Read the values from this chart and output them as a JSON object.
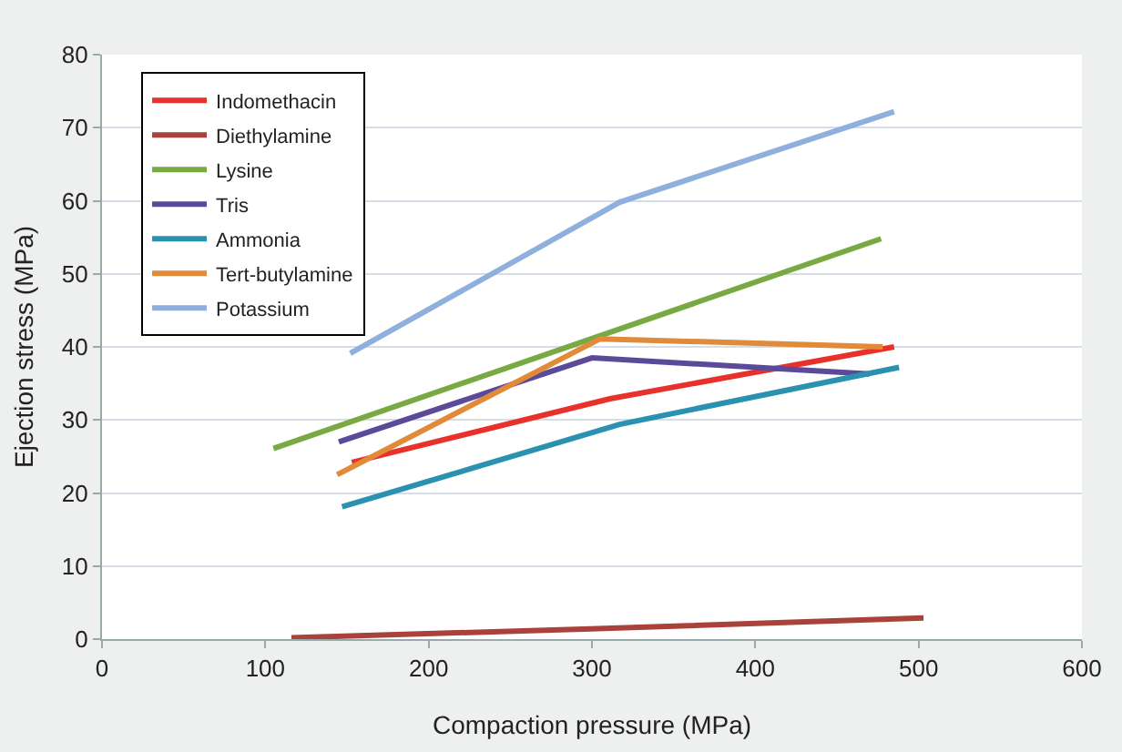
{
  "chart_data": {
    "type": "line",
    "xlabel": "Compaction pressure (MPa)",
    "ylabel": "Ejection stress (MPa)",
    "xlim": [
      0,
      600
    ],
    "xticks": [
      0,
      100,
      200,
      300,
      400,
      500,
      600
    ],
    "ylim": [
      0,
      80
    ],
    "yticks": [
      0,
      10,
      20,
      30,
      40,
      50,
      60,
      70,
      80
    ],
    "grid": "y",
    "legend": "top left",
    "marker": "none",
    "line_style": "solid",
    "series": [
      {
        "name": "Indomethacin",
        "color": "#e8312a",
        "x": [
          153,
          311,
          485
        ],
        "values": [
          24.2,
          32.9,
          40
        ]
      },
      {
        "name": "Diethylamine",
        "color": "#a9423a",
        "x": [
          116,
          299,
          503
        ],
        "values": [
          0.2,
          1.4,
          2.9
        ]
      },
      {
        "name": "Lysine",
        "color": "#78a942",
        "x": [
          105,
          477
        ],
        "values": [
          26.1,
          54.8
        ]
      },
      {
        "name": "Tris",
        "color": "#5b4a9a",
        "x": [
          145,
          300,
          470
        ],
        "values": [
          27,
          38.5,
          36.3
        ]
      },
      {
        "name": "Ammonia",
        "color": "#2a91b0",
        "x": [
          147,
          317,
          488
        ],
        "values": [
          18.1,
          29.4,
          37.2
        ]
      },
      {
        "name": "Tert-butylamine",
        "color": "#e08a3a",
        "x": [
          144,
          305,
          478
        ],
        "values": [
          22.5,
          41.1,
          40
        ]
      },
      {
        "name": "Potassium",
        "color": "#8fb0dd",
        "x": [
          152,
          317,
          485
        ],
        "values": [
          39.1,
          59.8,
          72.2
        ]
      }
    ]
  }
}
